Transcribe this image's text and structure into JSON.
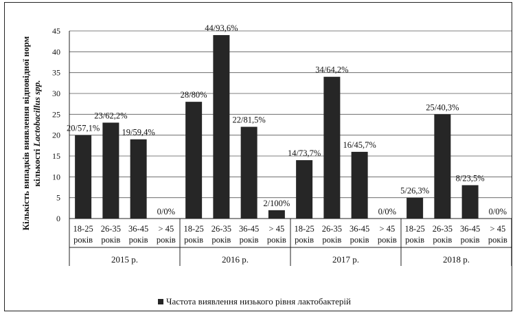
{
  "chart_data": {
    "type": "bar",
    "ylabel_line1": "Кількість випадків виявлення відповідної норм",
    "ylabel_line2_prefix": "кількості ",
    "ylabel_line2_italic": "Lactobacillus spp.",
    "ylim": [
      0,
      45
    ],
    "yticks": [
      "0",
      "5",
      "10",
      "15",
      "20",
      "25",
      "30",
      "35",
      "40",
      "45"
    ],
    "grid": true,
    "legend_position": "bottom",
    "series": [
      {
        "name": "Частота виявлення низького рівня лактобактерій",
        "color": "#262626",
        "values": [
          20,
          23,
          19,
          0,
          28,
          44,
          22,
          2,
          14,
          34,
          16,
          0,
          5,
          25,
          8,
          0
        ],
        "labels": [
          "20/57,1%",
          "23/62,2%",
          "19/59,4%",
          "0/0%",
          "28/80%",
          "44/93,6%",
          "22/81,5%",
          "2/100%",
          "14/73,7%",
          "34/64,2%",
          "16/45,7%",
          "0/0%",
          "5/26,3%",
          "25/40,3%",
          "8/23,5%",
          "0/0%"
        ]
      }
    ],
    "categories": [
      {
        "line1": "18-25",
        "line2": "років"
      },
      {
        "line1": "26-35",
        "line2": "років"
      },
      {
        "line1": "36-45",
        "line2": "років"
      },
      {
        "line1": "> 45",
        "line2": "років"
      },
      {
        "line1": "18-25",
        "line2": "років"
      },
      {
        "line1": "26-35",
        "line2": "років"
      },
      {
        "line1": "36-45",
        "line2": "років"
      },
      {
        "line1": "> 45",
        "line2": "років"
      },
      {
        "line1": "18-25",
        "line2": "років"
      },
      {
        "line1": "26-35",
        "line2": "років"
      },
      {
        "line1": "36-45",
        "line2": "років"
      },
      {
        "line1": "> 45",
        "line2": "років"
      },
      {
        "line1": "18-25",
        "line2": "років"
      },
      {
        "line1": "26-35",
        "line2": "років"
      },
      {
        "line1": "36-45",
        "line2": "років"
      },
      {
        "line1": "> 45",
        "line2": "років"
      }
    ],
    "groups": [
      "2015 р.",
      "2016 р.",
      "2017 р.",
      "2018 р."
    ]
  }
}
